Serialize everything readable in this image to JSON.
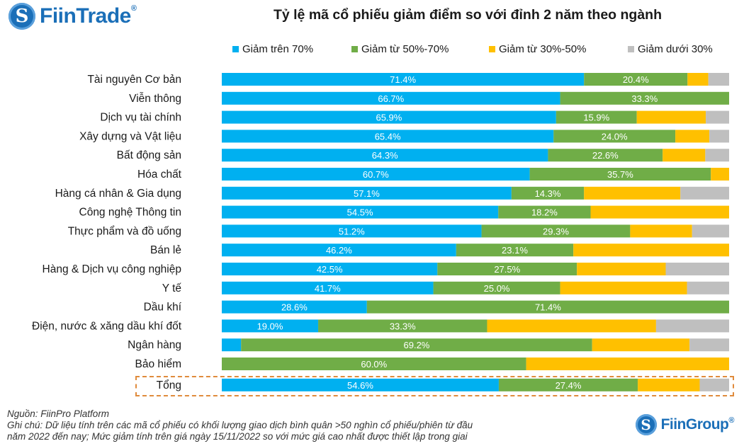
{
  "brand_top": "FiinTrade",
  "brand_top_mark": "®",
  "brand_bottom": "FiinGroup",
  "brand_bottom_mark": "®",
  "footer": {
    "source": "Nguồn: FiinPro Platform",
    "note_line1": "Ghi chú: Dữ liệu tính trên các mã cổ phiếu có khối lượng giao dịch bình quân >50 nghìn cổ phiếu/phiên từ đầu",
    "note_line2": "năm 2022 đến nay; Mức giảm tính trên giá ngày 15/11/2022 so với mức giá cao nhất được thiết lập trong giai"
  },
  "chart_data": {
    "type": "bar",
    "orientation": "horizontal",
    "stacked": "percent",
    "title": "Tỷ lệ mã cổ phiếu giảm điểm so với đỉnh 2 năm theo ngành",
    "xlim": [
      0,
      100
    ],
    "grid": false,
    "legend_position": "top",
    "categories": [
      "Tài nguyên Cơ bản",
      "Viễn thông",
      "Dịch vụ tài chính",
      "Xây dựng và Vật liệu",
      "Bất động sản",
      "Hóa chất",
      "Hàng cá nhân & Gia dụng",
      "Công nghệ Thông tin",
      "Thực phẩm và đồ uống",
      "Bán lẻ",
      "Hàng & Dịch vụ công nghiệp",
      "Y tế",
      "Dầu khí",
      "Điện, nước & xăng dầu khí đốt",
      "Ngân hàng",
      "Bảo hiểm",
      "Tổng"
    ],
    "series": [
      {
        "name": "Giảm trên 70%",
        "color": "#00b0f0",
        "values": [
          71.4,
          66.7,
          65.9,
          65.4,
          64.3,
          60.7,
          57.1,
          54.5,
          51.2,
          46.2,
          42.5,
          41.7,
          28.6,
          19.0,
          3.8,
          0,
          54.6
        ],
        "labels": [
          "71.4%",
          "66.7%",
          "65.9%",
          "65.4%",
          "64.3%",
          "60.7%",
          "57.1%",
          "54.5%",
          "51.2%",
          "46.2%",
          "42.5%",
          "41.7%",
          "28.6%",
          "19.0%",
          "",
          "",
          "54.6%"
        ]
      },
      {
        "name": "Giảm từ 50%-70%",
        "color": "#70ad47",
        "values": [
          20.4,
          33.3,
          15.9,
          24.0,
          22.6,
          35.7,
          14.3,
          18.2,
          29.3,
          23.1,
          27.5,
          25.0,
          71.4,
          33.3,
          69.2,
          60.0,
          27.4
        ],
        "labels": [
          "20.4%",
          "33.3%",
          "15.9%",
          "24.0%",
          "22.6%",
          "35.7%",
          "14.3%",
          "18.2%",
          "29.3%",
          "23.1%",
          "27.5%",
          "25.0%",
          "71.4%",
          "33.3%",
          "69.2%",
          "60.0%",
          "27.4%"
        ]
      },
      {
        "name": "Giảm từ 30%-50%",
        "color": "#ffc000",
        "values": [
          4.1,
          0,
          13.6,
          6.7,
          8.4,
          3.6,
          19.0,
          27.3,
          12.2,
          30.7,
          17.5,
          25.0,
          0,
          33.3,
          19.2,
          40.0,
          12.2
        ],
        "labels": [
          "",
          "",
          "",
          "",
          "",
          "",
          "",
          "",
          "",
          "",
          "",
          "",
          "",
          "",
          "",
          "",
          ""
        ]
      },
      {
        "name": "Giảm dưới 30%",
        "color": "#bfbfbf",
        "values": [
          4.1,
          0,
          4.6,
          3.9,
          4.7,
          0,
          9.6,
          0,
          7.3,
          0,
          12.5,
          8.3,
          0,
          14.4,
          7.8,
          0,
          5.8
        ],
        "labels": [
          "",
          "",
          "",
          "",
          "",
          "",
          "",
          "",
          "",
          "",
          "",
          "",
          "",
          "",
          "",
          "",
          ""
        ]
      }
    ]
  }
}
